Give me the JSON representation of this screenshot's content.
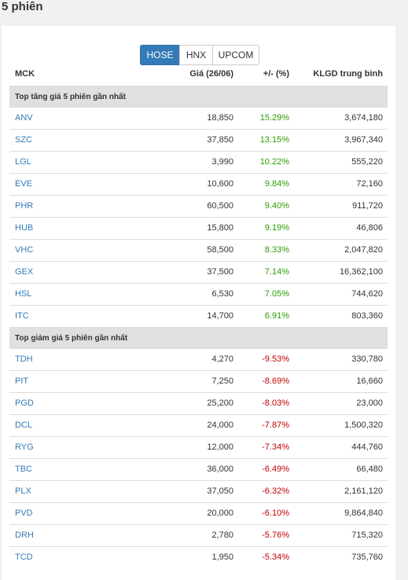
{
  "page_title": "5 phiên",
  "tabs": [
    {
      "label": "HOSE",
      "active": true
    },
    {
      "label": "HNX",
      "active": false
    },
    {
      "label": "UPCOM",
      "active": false
    }
  ],
  "columns": {
    "mck": "MCK",
    "price": "Giá (26/06)",
    "change_pct": "+/- (%)",
    "volume": "KLGD trung bình"
  },
  "colors": {
    "up": "#2a9d00",
    "down": "#c00000",
    "link": "#337ab7",
    "active_tab": "#337ab7"
  },
  "gainers": {
    "title": "Top tăng giá 5 phiên gần nhất",
    "rows": [
      {
        "mck": "ANV",
        "price": "18,850",
        "pct": "15.29%",
        "volume": "3,674,180"
      },
      {
        "mck": "SZC",
        "price": "37,850",
        "pct": "13.15%",
        "volume": "3,967,340"
      },
      {
        "mck": "LGL",
        "price": "3,990",
        "pct": "10.22%",
        "volume": "555,220"
      },
      {
        "mck": "EVE",
        "price": "10,600",
        "pct": "9.84%",
        "volume": "72,160"
      },
      {
        "mck": "PHR",
        "price": "60,500",
        "pct": "9.40%",
        "volume": "911,720"
      },
      {
        "mck": "HUB",
        "price": "15,800",
        "pct": "9.19%",
        "volume": "46,806"
      },
      {
        "mck": "VHC",
        "price": "58,500",
        "pct": "8.33%",
        "volume": "2,047,820"
      },
      {
        "mck": "GEX",
        "price": "37,500",
        "pct": "7.14%",
        "volume": "16,362,100"
      },
      {
        "mck": "HSL",
        "price": "6,530",
        "pct": "7.05%",
        "volume": "744,620"
      },
      {
        "mck": "ITC",
        "price": "14,700",
        "pct": "6.91%",
        "volume": "803,360"
      }
    ]
  },
  "losers": {
    "title": "Top giảm giá 5 phiên gần nhất",
    "rows": [
      {
        "mck": "TDH",
        "price": "4,270",
        "pct": "-9.53%",
        "volume": "330,780"
      },
      {
        "mck": "PIT",
        "price": "7,250",
        "pct": "-8.69%",
        "volume": "16,660"
      },
      {
        "mck": "PGD",
        "price": "25,200",
        "pct": "-8.03%",
        "volume": "23,000"
      },
      {
        "mck": "DCL",
        "price": "24,000",
        "pct": "-7.87%",
        "volume": "1,500,320"
      },
      {
        "mck": "RYG",
        "price": "12,000",
        "pct": "-7.34%",
        "volume": "444,760"
      },
      {
        "mck": "TBC",
        "price": "36,000",
        "pct": "-6.49%",
        "volume": "66,480"
      },
      {
        "mck": "PLX",
        "price": "37,050",
        "pct": "-6.32%",
        "volume": "2,161,120"
      },
      {
        "mck": "PVD",
        "price": "20,000",
        "pct": "-6.10%",
        "volume": "9,864,840"
      },
      {
        "mck": "DRH",
        "price": "2,780",
        "pct": "-5.76%",
        "volume": "715,320"
      },
      {
        "mck": "TCD",
        "price": "1,950",
        "pct": "-5.34%",
        "volume": "735,760"
      }
    ]
  }
}
